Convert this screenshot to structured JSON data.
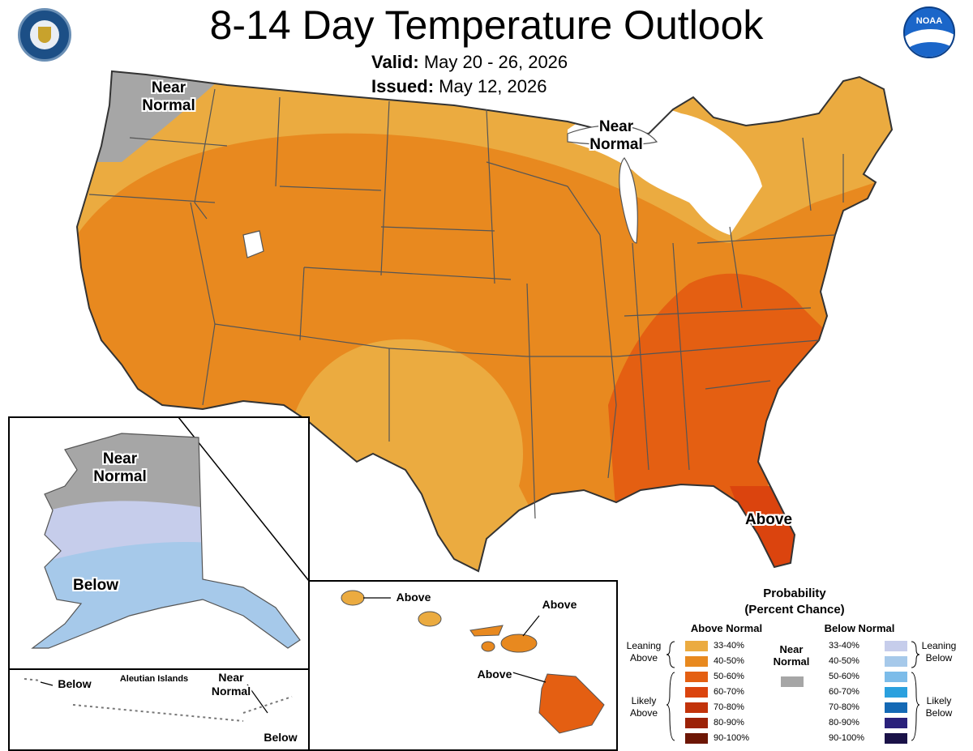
{
  "header": {
    "title": "8-14 Day Temperature Outlook",
    "valid_label": "Valid:",
    "valid_value": "May 20 - 26, 2026",
    "issued_label": "Issued:",
    "issued_value": "May 12, 2026",
    "left_logo": "department-of-commerce-seal",
    "right_logo": "noaa-logo",
    "noaa_text": "NOAA"
  },
  "map_labels": {
    "northwest": "Near Normal",
    "great_lakes": "Near Normal",
    "florida": "Above",
    "alaska_north": "Near Normal",
    "alaska_south": "Below",
    "aleutian_west": "Below",
    "aleutian_title": "Aleutian Islands",
    "aleutian_near": "Near Normal",
    "aleutian_below": "Below",
    "hawaii_kauai": "Above",
    "hawaii_maui": "Above",
    "hawaii_big": "Above"
  },
  "legend": {
    "title_line1": "Probability",
    "title_line2": "(Percent Chance)",
    "above_header": "Above Normal",
    "below_header": "Below Normal",
    "near_label": "Near Normal",
    "near_color": "#a6a6a6",
    "above_leaning_label": "Leaning Above",
    "above_likely_label": "Likely Above",
    "below_leaning_label": "Leaning Below",
    "below_likely_label": "Likely Below",
    "above_items": [
      {
        "label": "33-40%",
        "color": "#ebab40"
      },
      {
        "label": "40-50%",
        "color": "#e8891f"
      },
      {
        "label": "50-60%",
        "color": "#e45f12"
      },
      {
        "label": "60-70%",
        "color": "#db440e"
      },
      {
        "label": "70-80%",
        "color": "#c2330a"
      },
      {
        "label": "80-90%",
        "color": "#9c2207"
      },
      {
        "label": "90-100%",
        "color": "#6d1605"
      }
    ],
    "below_items": [
      {
        "label": "33-40%",
        "color": "#c6cdeb"
      },
      {
        "label": "40-50%",
        "color": "#a6c9ea"
      },
      {
        "label": "50-60%",
        "color": "#7cbce9"
      },
      {
        "label": "60-70%",
        "color": "#2aa0de"
      },
      {
        "label": "70-80%",
        "color": "#1469b5"
      },
      {
        "label": "80-90%",
        "color": "#2a217b"
      },
      {
        "label": "90-100%",
        "color": "#1a1248"
      }
    ]
  }
}
